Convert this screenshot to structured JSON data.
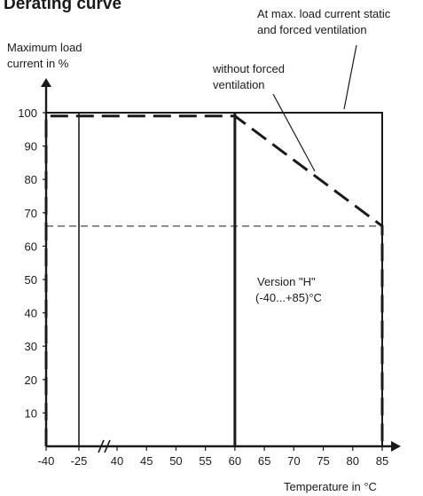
{
  "chart_data": {
    "type": "line",
    "title": "Derating curve",
    "ylabel_lines": [
      "Maximum load",
      "current in %"
    ],
    "xlabel": "Temperature in °C",
    "x_ticks": [
      "-40",
      "-25",
      "40",
      "45",
      "50",
      "55",
      "60",
      "65",
      "70",
      "75",
      "80",
      "85"
    ],
    "y_ticks": [
      "10",
      "20",
      "30",
      "40",
      "50",
      "60",
      "70",
      "80",
      "90",
      "100"
    ],
    "x_axis_break": true,
    "ylim": [
      0,
      100
    ],
    "reference_level_percent": 66,
    "series": [
      {
        "name": "At max. load current static and forced ventilation",
        "style": "solid",
        "points": [
          [
            -40,
            0
          ],
          [
            -40,
            100
          ],
          [
            85,
            100
          ],
          [
            85,
            0
          ]
        ]
      },
      {
        "name": "without forced ventilation",
        "style": "dashed",
        "points": [
          [
            -40,
            0
          ],
          [
            -40,
            99
          ],
          [
            60,
            99
          ],
          [
            85,
            66
          ],
          [
            85,
            0
          ]
        ]
      }
    ],
    "annotations": {
      "forced_lines": [
        "At max. load current static",
        "and forced ventilation"
      ],
      "without_lines": [
        "without forced",
        "ventilation"
      ],
      "version_lines": [
        "Version \"H\"",
        "(-40...+85)°C"
      ]
    },
    "line_color": "#1a1a1a"
  }
}
